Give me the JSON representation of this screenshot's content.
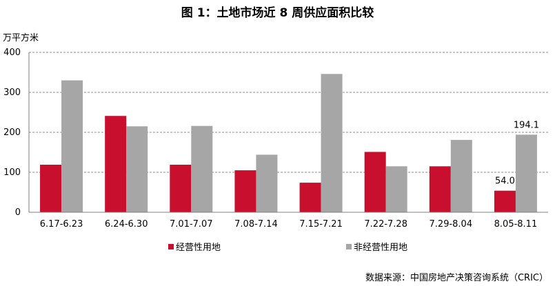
{
  "title": "图 1：土地市场近 8 周供应面积比较",
  "unit_label": "万平方米",
  "source": "数据来源：中国房地产决策咨询系统（CRIC）",
  "colors": {
    "series1": "#C8102E",
    "series2": "#A6A6A6"
  },
  "chart_data": {
    "type": "bar",
    "categories": [
      "6.17-6.23",
      "6.24-6.30",
      "7.01-7.07",
      "7.08-7.14",
      "7.15-7.21",
      "7.22-7.28",
      "7.29-8.04",
      "8.05-8.11"
    ],
    "series": [
      {
        "name": "经营性用地",
        "values": [
          119,
          241,
          119,
          105,
          74,
          151,
          115,
          54.0
        ]
      },
      {
        "name": "非经营性用地",
        "values": [
          330,
          215,
          216,
          144,
          346,
          115,
          181,
          194.1
        ]
      }
    ],
    "data_labels": [
      {
        "series": 0,
        "index": 7,
        "text": "54.0"
      },
      {
        "series": 1,
        "index": 7,
        "text": "194.1"
      }
    ],
    "yticks": [
      "0",
      "100",
      "200",
      "300",
      "400"
    ],
    "ylim": [
      0,
      400
    ],
    "grid": "dashed-horizontal",
    "legend": "bottom"
  }
}
